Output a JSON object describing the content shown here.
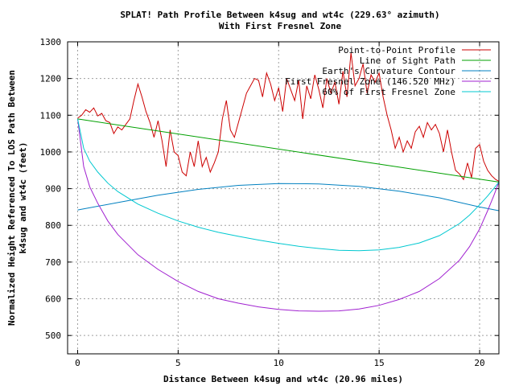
{
  "chart_data": {
    "type": "line",
    "title": "SPLAT! Path Profile Between k4sug and wt4c (229.63° azimuth)",
    "subtitle": "With First Fresnel Zone",
    "xlabel": "Distance Between k4sug and wt4c (20.96 miles)",
    "ylabel_line1": "Normalized Height Referenced To LOS Path Between",
    "ylabel_line2": "k4sug and wt4c (feet)",
    "xlim": [
      -0.5,
      20.96
    ],
    "ylim": [
      450,
      1300
    ],
    "xticks": [
      0,
      5,
      10,
      15,
      20
    ],
    "yticks": [
      500,
      600,
      700,
      800,
      900,
      1000,
      1100,
      1200,
      1300
    ],
    "grid": true,
    "legend_position": "top-right",
    "series": [
      {
        "name": "Point-to-Point Profile",
        "color": "#cc0000",
        "x": [
          0,
          0.2,
          0.4,
          0.6,
          0.8,
          1.0,
          1.2,
          1.4,
          1.6,
          1.8,
          2.0,
          2.2,
          2.4,
          2.6,
          2.8,
          3.0,
          3.2,
          3.4,
          3.6,
          3.8,
          4.0,
          4.2,
          4.4,
          4.6,
          4.8,
          5.0,
          5.2,
          5.4,
          5.6,
          5.8,
          6.0,
          6.2,
          6.4,
          6.6,
          6.8,
          7.0,
          7.2,
          7.4,
          7.6,
          7.8,
          8.0,
          8.2,
          8.4,
          8.6,
          8.8,
          9.0,
          9.2,
          9.4,
          9.6,
          9.8,
          10.0,
          10.2,
          10.4,
          10.6,
          10.8,
          11.0,
          11.2,
          11.4,
          11.6,
          11.8,
          12.0,
          12.2,
          12.4,
          12.6,
          12.8,
          13.0,
          13.2,
          13.4,
          13.6,
          13.8,
          14.0,
          14.2,
          14.4,
          14.6,
          14.8,
          15.0,
          15.2,
          15.4,
          15.6,
          15.8,
          16.0,
          16.2,
          16.4,
          16.6,
          16.8,
          17.0,
          17.2,
          17.4,
          17.6,
          17.8,
          18.0,
          18.2,
          18.4,
          18.6,
          18.8,
          19.0,
          19.2,
          19.4,
          19.6,
          19.8,
          20.0,
          20.2,
          20.4,
          20.6,
          20.8,
          20.96
        ],
        "y": [
          1092,
          1100,
          1115,
          1108,
          1120,
          1098,
          1105,
          1085,
          1080,
          1050,
          1068,
          1060,
          1075,
          1090,
          1140,
          1185,
          1150,
          1110,
          1080,
          1040,
          1085,
          1030,
          960,
          1060,
          1000,
          990,
          945,
          935,
          1000,
          960,
          1030,
          960,
          985,
          945,
          970,
          1000,
          1090,
          1140,
          1060,
          1040,
          1080,
          1120,
          1160,
          1180,
          1200,
          1195,
          1150,
          1215,
          1185,
          1140,
          1175,
          1110,
          1200,
          1170,
          1140,
          1195,
          1090,
          1180,
          1145,
          1210,
          1170,
          1120,
          1200,
          1160,
          1190,
          1130,
          1220,
          1150,
          1270,
          1180,
          1200,
          1240,
          1160,
          1210,
          1190,
          1215,
          1150,
          1100,
          1060,
          1010,
          1040,
          1000,
          1030,
          1010,
          1055,
          1070,
          1040,
          1080,
          1060,
          1075,
          1050,
          1000,
          1060,
          1000,
          950,
          940,
          925,
          970,
          930,
          1010,
          1020,
          975,
          950,
          935,
          925,
          920
        ]
      },
      {
        "name": "Line of Sight Path",
        "color": "#00a000",
        "x": [
          0,
          20.96
        ],
        "y": [
          1090,
          918
        ]
      },
      {
        "name": "Earth's Curvature Contour",
        "color": "#0080c0",
        "x": [
          0,
          2,
          4,
          6,
          8,
          10,
          12,
          14,
          16,
          18,
          20,
          20.96
        ],
        "y": [
          842,
          862,
          882,
          898,
          909,
          914,
          913,
          906,
          893,
          875,
          850,
          840
        ]
      },
      {
        "name": "First Fresnel Zone (146.520 MHz)",
        "color": "#a020d0",
        "x": [
          0,
          0.3,
          0.6,
          1.0,
          1.5,
          2,
          3,
          4,
          5,
          6,
          7,
          8,
          9,
          10,
          11,
          12,
          13,
          14,
          15,
          16,
          17,
          18,
          19,
          19.5,
          20,
          20.4,
          20.7,
          20.96
        ],
        "y": [
          1090,
          960,
          905,
          860,
          812,
          775,
          720,
          680,
          647,
          620,
          600,
          588,
          578,
          571,
          567,
          566,
          567,
          572,
          582,
          598,
          620,
          655,
          705,
          742,
          790,
          840,
          880,
          918
        ]
      },
      {
        "name": "60% of First Fresnel Zone",
        "color": "#00c8d0",
        "x": [
          0,
          0.3,
          0.6,
          1.0,
          1.5,
          2,
          3,
          4,
          5,
          6,
          7,
          8,
          9,
          10,
          11,
          12,
          13,
          14,
          15,
          16,
          17,
          18,
          19,
          19.5,
          20,
          20.4,
          20.7,
          20.96
        ],
        "y": [
          1090,
          1010,
          975,
          945,
          915,
          892,
          858,
          833,
          812,
          795,
          781,
          770,
          760,
          751,
          743,
          737,
          732,
          731,
          733,
          740,
          752,
          772,
          805,
          828,
          856,
          880,
          900,
          918
        ]
      }
    ]
  }
}
